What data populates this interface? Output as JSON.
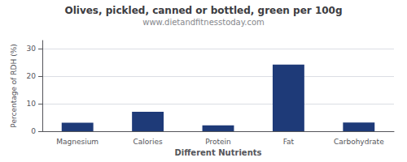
{
  "chart_data": {
    "type": "bar",
    "title": "Olives, pickled, canned or bottled, green per 100g",
    "subtitle": "www.dietandfitnesstoday.com",
    "categories": [
      "Magnesium",
      "Calories",
      "Protein",
      "Fat",
      "Carbohydrate"
    ],
    "values": [
      3.1,
      7.1,
      2.1,
      24.2,
      3.2
    ],
    "color": "#1e3a78",
    "xlabel": "Different Nutrients",
    "ylabel": "Percentage of RDH (%)",
    "ylim": [
      0,
      33
    ],
    "yticks": [
      0,
      10,
      20,
      30
    ],
    "grid": true
  }
}
